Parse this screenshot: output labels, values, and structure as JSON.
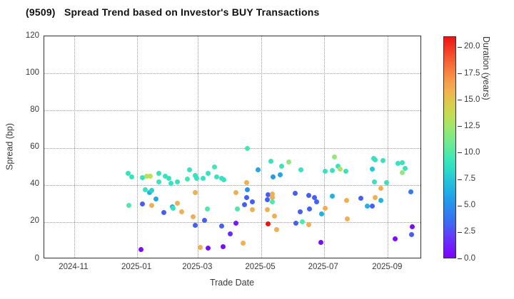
{
  "title": "(9509)   Spread Trend based on Investor's BUY Transactions",
  "chart_data": {
    "type": "scatter",
    "title": "(9509)   Spread Trend based on Investor's BUY Transactions",
    "xlabel": "Trade Date",
    "ylabel": "Spread (bp)",
    "colorbar_label": "Duration (years)",
    "colormap": "rainbow",
    "grid": true,
    "ylim": [
      0,
      120
    ],
    "y_ticks": [
      "0",
      "20",
      "40",
      "60",
      "80",
      "100",
      "120"
    ],
    "x_range": [
      "2024-10-03",
      "2025-10-04"
    ],
    "x_ticks": [
      "2024-11",
      "2025-01",
      "2025-03",
      "2025-05",
      "2025-07",
      "2025-09"
    ],
    "colorbar_range": [
      0,
      21
    ],
    "colorbar_ticks": [
      "0.0",
      "2.5",
      "5.0",
      "7.5",
      "10.0",
      "12.5",
      "15.0",
      "17.5",
      "20.0"
    ],
    "point_fields": [
      "trade_date",
      "spread_bp",
      "duration_years"
    ],
    "points": [
      [
        "2024-12-23",
        46.1,
        9.0
      ],
      [
        "2024-12-27",
        44.3,
        9.0
      ],
      [
        "2025-01-06",
        43.9,
        9.0
      ],
      [
        "2025-01-10",
        44.6,
        13.0
      ],
      [
        "2025-01-14",
        44.6,
        13.5
      ],
      [
        "2025-01-22",
        46.2,
        9.0
      ],
      [
        "2025-01-22",
        41.6,
        9.0
      ],
      [
        "2025-01-28",
        44.6,
        9.0
      ],
      [
        "2025-02-01",
        43.5,
        9.0
      ],
      [
        "2025-02-03",
        40.8,
        9.0
      ],
      [
        "2025-02-09",
        41.6,
        9.0
      ],
      [
        "2025-02-19",
        43.1,
        9.5
      ],
      [
        "2025-02-21",
        48.1,
        9.0
      ],
      [
        "2025-02-26",
        45.0,
        9.0
      ],
      [
        "2025-02-28",
        43.5,
        9.0
      ],
      [
        "2025-03-06",
        43.5,
        9.0
      ],
      [
        "2025-03-11",
        46.2,
        9.0
      ],
      [
        "2025-03-17",
        49.6,
        9.5
      ],
      [
        "2025-03-19",
        44.2,
        9.0
      ],
      [
        "2025-03-24",
        43.5,
        9.0
      ],
      [
        "2025-03-26",
        42.7,
        9.0
      ],
      [
        "2024-12-24",
        28.9,
        10.0
      ],
      [
        "2025-01-06",
        29.7,
        3.0
      ],
      [
        "2025-01-09",
        37.3,
        9.0
      ],
      [
        "2025-01-13",
        35.8,
        6.5
      ],
      [
        "2025-01-15",
        36.9,
        8.0
      ],
      [
        "2025-01-19",
        32.4,
        6.0
      ],
      [
        "2025-01-15",
        28.9,
        16.0
      ],
      [
        "2025-01-27",
        25.1,
        3.0
      ],
      [
        "2025-02-04",
        28.2,
        6.5
      ],
      [
        "2025-02-05",
        27.4,
        9.0
      ],
      [
        "2025-02-09",
        30.1,
        16.0
      ],
      [
        "2025-02-13",
        25.5,
        16.0
      ],
      [
        "2025-02-24",
        22.8,
        16.0
      ],
      [
        "2025-02-26",
        35.8,
        16.0
      ],
      [
        "2025-02-26",
        18.2,
        3.0
      ],
      [
        "2025-03-07",
        20.9,
        3.0
      ],
      [
        "2025-03-10",
        27.0,
        10.0
      ],
      [
        "2025-03-24",
        17.8,
        3.0
      ],
      [
        "2025-01-05",
        5.2,
        0.5
      ],
      [
        "2025-03-03",
        6.4,
        16.0
      ],
      [
        "2025-03-11",
        6.0,
        0.5
      ],
      [
        "2025-03-25",
        6.7,
        0.5
      ],
      [
        "2025-04-18",
        59.5,
        9.5
      ],
      [
        "2025-04-07",
        35.8,
        16.0
      ],
      [
        "2025-04-17",
        41.2,
        16.0
      ],
      [
        "2025-04-18",
        37.3,
        5.0
      ],
      [
        "2025-04-17",
        33.1,
        3.0
      ],
      [
        "2025-04-23",
        30.8,
        3.0
      ],
      [
        "2025-04-15",
        29.3,
        3.0
      ],
      [
        "2025-04-08",
        27.0,
        10.0
      ],
      [
        "2025-04-23",
        26.6,
        16.0
      ],
      [
        "2025-04-01",
        13.6,
        1.5
      ],
      [
        "2025-04-07",
        19.4,
        0.8
      ],
      [
        "2025-04-14",
        8.6,
        16.0
      ],
      [
        "2025-04-28",
        48.1,
        6.0
      ],
      [
        "2025-05-07",
        32.0,
        3.0
      ],
      [
        "2025-05-08",
        34.7,
        3.0
      ],
      [
        "2025-05-12",
        35.1,
        16.0
      ],
      [
        "2025-05-12",
        33.1,
        16.0
      ],
      [
        "2025-05-12",
        30.8,
        10.0
      ],
      [
        "2025-05-07",
        26.6,
        16.0
      ],
      [
        "2025-05-14",
        23.2,
        16.0
      ],
      [
        "2025-05-08",
        19.0,
        21.0
      ],
      [
        "2025-05-16",
        15.9,
        16.0
      ],
      [
        "2025-05-11",
        52.7,
        9.0
      ],
      [
        "2025-05-21",
        50.0,
        9.0
      ],
      [
        "2025-05-28",
        52.3,
        12.0
      ],
      [
        "2025-06-09",
        48.1,
        9.0
      ],
      [
        "2025-05-13",
        44.2,
        5.5
      ],
      [
        "2025-05-20",
        45.4,
        6.0
      ],
      [
        "2025-06-03",
        35.4,
        3.0
      ],
      [
        "2025-06-16",
        34.3,
        3.0
      ],
      [
        "2025-06-22",
        33.1,
        3.0
      ],
      [
        "2025-06-24",
        30.8,
        3.0
      ],
      [
        "2025-06-08",
        25.5,
        3.0
      ],
      [
        "2025-06-17",
        27.0,
        3.0
      ],
      [
        "2025-06-29",
        24.3,
        6.5
      ],
      [
        "2025-06-04",
        19.4,
        3.0
      ],
      [
        "2025-06-10",
        20.1,
        10.0
      ],
      [
        "2025-06-16",
        18.6,
        16.0
      ],
      [
        "2025-06-28",
        9.0,
        0.5
      ],
      [
        "2025-07-02",
        27.4,
        16.0
      ],
      [
        "2025-07-02",
        47.3,
        9.0
      ],
      [
        "2025-07-11",
        55.0,
        12.0
      ],
      [
        "2025-07-15",
        50.0,
        9.0
      ],
      [
        "2025-07-17",
        48.5,
        13.0
      ],
      [
        "2025-07-09",
        47.7,
        9.0
      ],
      [
        "2025-07-22",
        47.3,
        9.0
      ],
      [
        "2025-07-09",
        33.9,
        6.5
      ],
      [
        "2025-07-23",
        31.6,
        16.0
      ],
      [
        "2025-07-24",
        21.7,
        16.0
      ],
      [
        "2025-08-18",
        54.2,
        9.0
      ],
      [
        "2025-08-20",
        53.4,
        9.0
      ],
      [
        "2025-08-27",
        53.0,
        9.0
      ],
      [
        "2025-08-17",
        48.5,
        7.5
      ],
      [
        "2025-08-19",
        41.6,
        9.0
      ],
      [
        "2025-08-31",
        41.2,
        9.0
      ],
      [
        "2025-08-25",
        38.1,
        16.0
      ],
      [
        "2025-08-06",
        32.8,
        3.0
      ],
      [
        "2025-08-12",
        28.5,
        6.5
      ],
      [
        "2025-08-17",
        28.5,
        3.0
      ],
      [
        "2025-08-20",
        33.1,
        16.0
      ],
      [
        "2025-08-25",
        31.6,
        6.5
      ],
      [
        "2025-09-11",
        51.5,
        9.0
      ],
      [
        "2025-09-15",
        51.9,
        9.0
      ],
      [
        "2025-09-18",
        48.8,
        9.0
      ],
      [
        "2025-09-15",
        46.5,
        12.0
      ],
      [
        "2025-09-23",
        36.2,
        4.0
      ],
      [
        "2025-09-25",
        17.4,
        0.5
      ],
      [
        "2025-09-24",
        13.2,
        3.0
      ],
      [
        "2025-09-08",
        10.9,
        0.5
      ]
    ]
  },
  "colors": {
    "grid": "#999999",
    "spine": "#333333",
    "text": "#3a3a3a",
    "title_text": "#111111",
    "cmap_low_purple": "#7f00ff",
    "cmap_blue": "#4264f5",
    "cmap_cyan": "#23b7e2",
    "cmap_teal": "#40e7b8",
    "cmap_green": "#8fe97b",
    "cmap_yellow_green": "#cdd84a",
    "cmap_orange": "#f5a852",
    "cmap_high_red": "#ee1414"
  }
}
